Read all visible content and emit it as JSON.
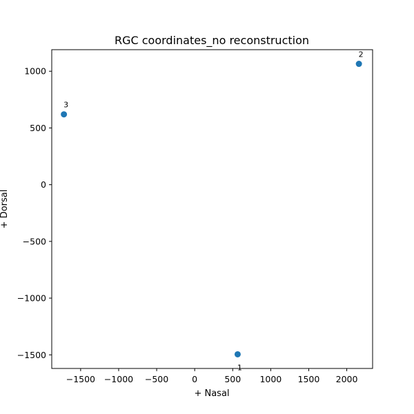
{
  "chart_data": {
    "type": "scatter",
    "title": "RGC coordinates_no reconstruction",
    "xlabel": "+ Nasal",
    "ylabel": "+ Dorsal",
    "xlim": [
      -1880,
      2340
    ],
    "ylim": [
      -1620,
      1190
    ],
    "xticks": [
      -1500,
      -1000,
      -500,
      0,
      500,
      1000,
      1500,
      2000
    ],
    "yticks": [
      1000,
      500,
      0,
      -500,
      -1000,
      -1500
    ],
    "xtick_labels": [
      "−1500",
      "−1000",
      "−500",
      "0",
      "500",
      "1000",
      "1500",
      "2000"
    ],
    "ytick_labels": [
      "1000",
      "500",
      "0",
      "−500",
      "−1000",
      "−1500"
    ],
    "points": [
      {
        "label": "1",
        "x": 565,
        "y": -1495,
        "label_pos": "below"
      },
      {
        "label": "2",
        "x": 2160,
        "y": 1065,
        "label_pos": "above"
      },
      {
        "label": "3",
        "x": -1720,
        "y": 620,
        "label_pos": "above"
      }
    ],
    "marker_color": "#1f77b4",
    "grid": false,
    "legend": false
  }
}
